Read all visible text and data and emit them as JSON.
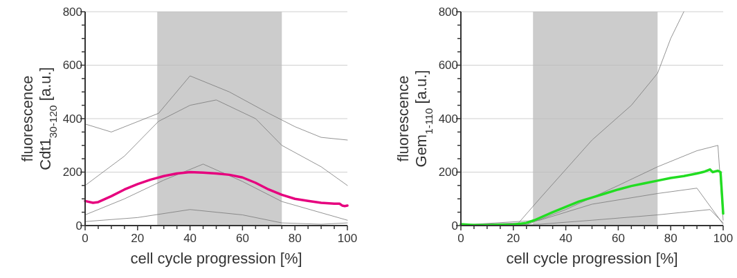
{
  "chart_data": [
    {
      "type": "line",
      "xlabel": "cell cycle progression [%]",
      "ylabel": "fluorescence\nCdt1$_{30-120}$ [a.u.]",
      "xlim": [
        0,
        100
      ],
      "ylim": [
        0,
        800
      ],
      "xticks": [
        0,
        {
          "value": 5,
          "label": null
        },
        {
          "value": 10,
          "label": null
        },
        {
          "value": 15,
          "label": null
        },
        20,
        {
          "value": 25,
          "label": null
        },
        {
          "value": 30,
          "label": null
        },
        {
          "value": 35,
          "label": null
        },
        40,
        {
          "value": 45,
          "label": null
        },
        {
          "value": 50,
          "label": null
        },
        {
          "value": 55,
          "label": null
        },
        60,
        {
          "value": 65,
          "label": null
        },
        {
          "value": 70,
          "label": null
        },
        {
          "value": 75,
          "label": null
        },
        80,
        {
          "value": 85,
          "label": null
        },
        {
          "value": 90,
          "label": null
        },
        {
          "value": 95,
          "label": null
        },
        100
      ],
      "yticks": [
        0,
        {
          "value": 50,
          "label": null
        },
        {
          "value": 100,
          "label": null
        },
        {
          "value": 150,
          "label": null
        },
        200,
        {
          "value": 250,
          "label": null
        },
        {
          "value": 300,
          "label": null
        },
        {
          "value": 350,
          "label": null
        },
        400,
        {
          "value": 450,
          "label": null
        },
        {
          "value": 500,
          "label": null
        },
        {
          "value": 550,
          "label": null
        },
        600,
        {
          "value": 650,
          "label": null
        },
        {
          "value": 700,
          "label": null
        },
        {
          "value": 750,
          "label": null
        },
        800
      ],
      "grid": "y",
      "bands": [
        {
          "axis": "x",
          "from": 27.5,
          "to": 75,
          "color": "#cccccc"
        }
      ],
      "series": [
        {
          "color": "#777777",
          "x": [
            0,
            20,
            40,
            60,
            75,
            90,
            100
          ],
          "values": [
            15,
            30,
            60,
            40,
            10,
            5,
            10
          ]
        },
        {
          "color": "#777777",
          "x": [
            0,
            15,
            30,
            45,
            60,
            75,
            100
          ],
          "values": [
            40,
            100,
            170,
            230,
            165,
            90,
            20
          ]
        },
        {
          "color": "#777777",
          "x": [
            0,
            15,
            28,
            40,
            50,
            65,
            75,
            90,
            100
          ],
          "values": [
            150,
            260,
            390,
            450,
            470,
            400,
            300,
            220,
            150
          ]
        },
        {
          "color": "#777777",
          "x": [
            0,
            10,
            28,
            40,
            55,
            70,
            80,
            90,
            100
          ],
          "values": [
            380,
            350,
            420,
            560,
            500,
            420,
            370,
            330,
            320
          ]
        },
        {
          "color": "#e6007e",
          "x": [
            0,
            3,
            5,
            10,
            15,
            20,
            25,
            30,
            35,
            40,
            45,
            50,
            55,
            60,
            65,
            70,
            75,
            80,
            85,
            90,
            95,
            97,
            98,
            99,
            100
          ],
          "values": [
            92,
            85,
            88,
            110,
            135,
            155,
            172,
            185,
            195,
            200,
            198,
            195,
            190,
            180,
            160,
            135,
            115,
            100,
            92,
            85,
            82,
            82,
            75,
            73,
            75
          ]
        }
      ]
    },
    {
      "type": "line",
      "xlabel": "cell cycle progression [%]",
      "ylabel": "fluorescence\nGem$_{1-110}$ [a.u.]",
      "xlim": [
        0,
        100
      ],
      "ylim": [
        0,
        800
      ],
      "xticks": [
        0,
        {
          "value": 5,
          "label": null
        },
        {
          "value": 10,
          "label": null
        },
        {
          "value": 15,
          "label": null
        },
        20,
        {
          "value": 25,
          "label": null
        },
        {
          "value": 30,
          "label": null
        },
        {
          "value": 35,
          "label": null
        },
        40,
        {
          "value": 45,
          "label": null
        },
        {
          "value": 50,
          "label": null
        },
        {
          "value": 55,
          "label": null
        },
        60,
        {
          "value": 65,
          "label": null
        },
        {
          "value": 70,
          "label": null
        },
        {
          "value": 75,
          "label": null
        },
        80,
        {
          "value": 85,
          "label": null
        },
        {
          "value": 90,
          "label": null
        },
        {
          "value": 95,
          "label": null
        },
        100
      ],
      "yticks": [
        0,
        {
          "value": 50,
          "label": null
        },
        {
          "value": 100,
          "label": null
        },
        {
          "value": 150,
          "label": null
        },
        200,
        {
          "value": 250,
          "label": null
        },
        {
          "value": 300,
          "label": null
        },
        {
          "value": 350,
          "label": null
        },
        400,
        {
          "value": 450,
          "label": null
        },
        {
          "value": 500,
          "label": null
        },
        {
          "value": 550,
          "label": null
        },
        600,
        {
          "value": 650,
          "label": null
        },
        {
          "value": 700,
          "label": null
        },
        {
          "value": 750,
          "label": null
        },
        800
      ],
      "grid": "y",
      "bands": [
        {
          "axis": "x",
          "from": 27.5,
          "to": 75,
          "color": "#cccccc"
        }
      ],
      "series": [
        {
          "color": "#777777",
          "x": [
            0,
            30,
            50,
            75,
            95,
            100
          ],
          "values": [
            2,
            5,
            20,
            40,
            60,
            10
          ]
        },
        {
          "color": "#777777",
          "x": [
            0,
            30,
            50,
            75,
            90,
            100
          ],
          "values": [
            2,
            20,
            80,
            120,
            140,
            5
          ]
        },
        {
          "color": "#777777",
          "x": [
            0,
            25,
            40,
            60,
            75,
            90,
            98,
            100
          ],
          "values": [
            2,
            3,
            60,
            150,
            220,
            280,
            300,
            20
          ]
        },
        {
          "color": "#777777",
          "x": [
            0,
            22,
            30,
            50,
            65,
            75,
            80,
            85
          ],
          "values": [
            2,
            10,
            100,
            320,
            450,
            570,
            700,
            800
          ]
        },
        {
          "color": "#22dd22",
          "x": [
            0,
            5,
            10,
            15,
            20,
            25,
            28,
            35,
            40,
            45,
            50,
            55,
            60,
            65,
            70,
            75,
            80,
            85,
            90,
            93,
            95,
            96,
            98,
            99,
            100
          ],
          "values": [
            5,
            2,
            2,
            3,
            4,
            10,
            20,
            50,
            70,
            90,
            105,
            120,
            135,
            148,
            158,
            168,
            178,
            185,
            195,
            202,
            210,
            200,
            205,
            200,
            45
          ]
        }
      ]
    }
  ]
}
